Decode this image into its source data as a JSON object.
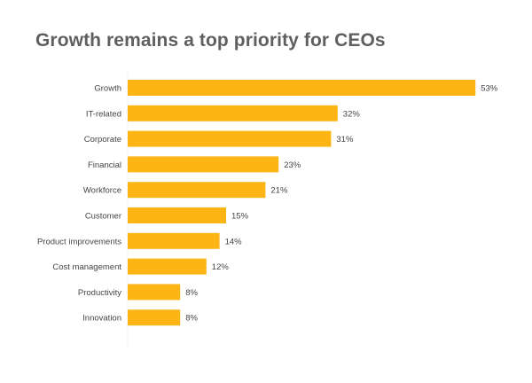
{
  "chart_data": {
    "type": "bar",
    "orientation": "horizontal",
    "title": "Growth remains a top priority for CEOs",
    "xlabel": "",
    "ylabel": "",
    "categories": [
      "Growth",
      "IT-related",
      "Corporate",
      "Financial",
      "Workforce",
      "Customer",
      "Product improvements",
      "Cost management",
      "Productivity",
      "Innovation"
    ],
    "values": [
      53,
      32,
      31,
      23,
      21,
      15,
      14,
      12,
      8,
      8
    ],
    "value_labels": [
      "53%",
      "32%",
      "31%",
      "23%",
      "21%",
      "15%",
      "14%",
      "12%",
      "8%",
      "8%"
    ],
    "xlim": [
      0,
      55
    ],
    "grid": false,
    "legend": "none",
    "bar_color": "#FDB515"
  }
}
